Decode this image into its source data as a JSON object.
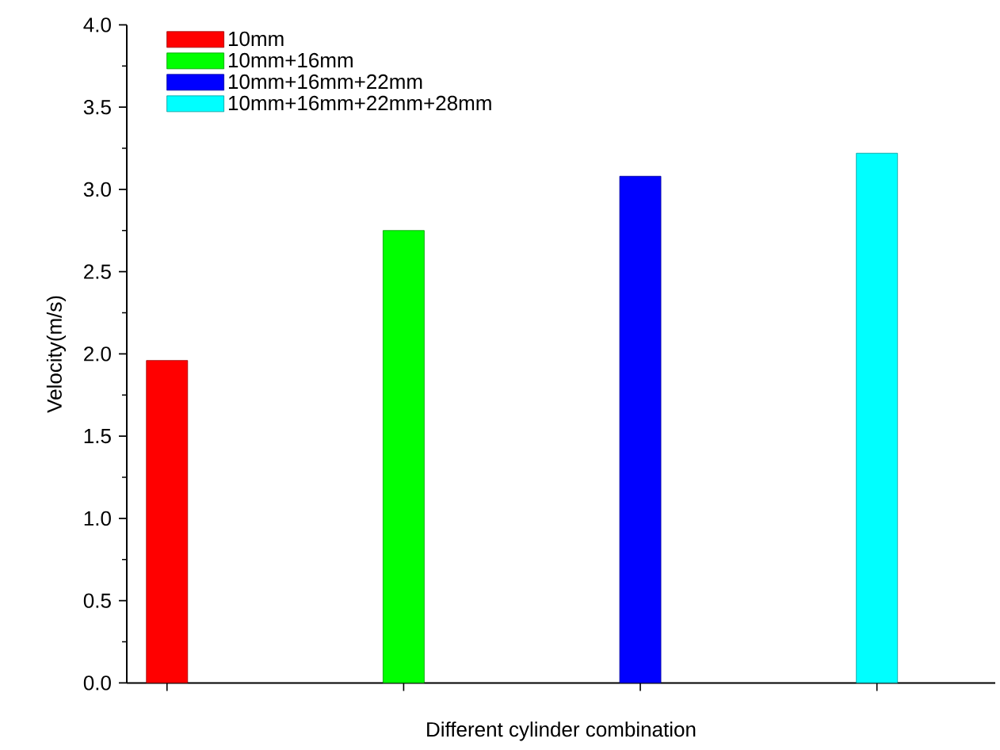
{
  "chart_data": {
    "type": "bar",
    "xlabel": "Different cylinder combination",
    "ylabel": "Velocity(m/s)",
    "categories": [
      null,
      null,
      null,
      null
    ],
    "series": [
      {
        "name": "10mm",
        "color": "#ff0000",
        "values": [
          1.96,
          null,
          null,
          null
        ]
      },
      {
        "name": "10mm+16mm",
        "color": "#00ff00",
        "values": [
          null,
          2.75,
          null,
          null
        ]
      },
      {
        "name": "10mm+16mm+22mm",
        "color": "#0000ff",
        "values": [
          null,
          null,
          3.08,
          null
        ]
      },
      {
        "name": "10mm+16mm+22mm+28mm",
        "color": "#00ffff",
        "values": [
          null,
          null,
          null,
          3.22
        ]
      }
    ],
    "ylim": [
      0,
      4.0
    ],
    "yticks": [
      {
        "value": 0,
        "label": "0.0"
      },
      {
        "value": 0.5,
        "label": "0.5"
      },
      {
        "value": 1,
        "label": "1.0"
      },
      {
        "value": 1.5,
        "label": "1.5"
      },
      {
        "value": 2,
        "label": "2.0"
      },
      {
        "value": 2.5,
        "label": "2.5"
      },
      {
        "value": 3,
        "label": "3.0"
      },
      {
        "value": 3.5,
        "label": "3.5"
      },
      {
        "value": 4,
        "label": "4.0"
      }
    ],
    "legend": "top left",
    "grid": false,
    "tick_labels": "y"
  }
}
